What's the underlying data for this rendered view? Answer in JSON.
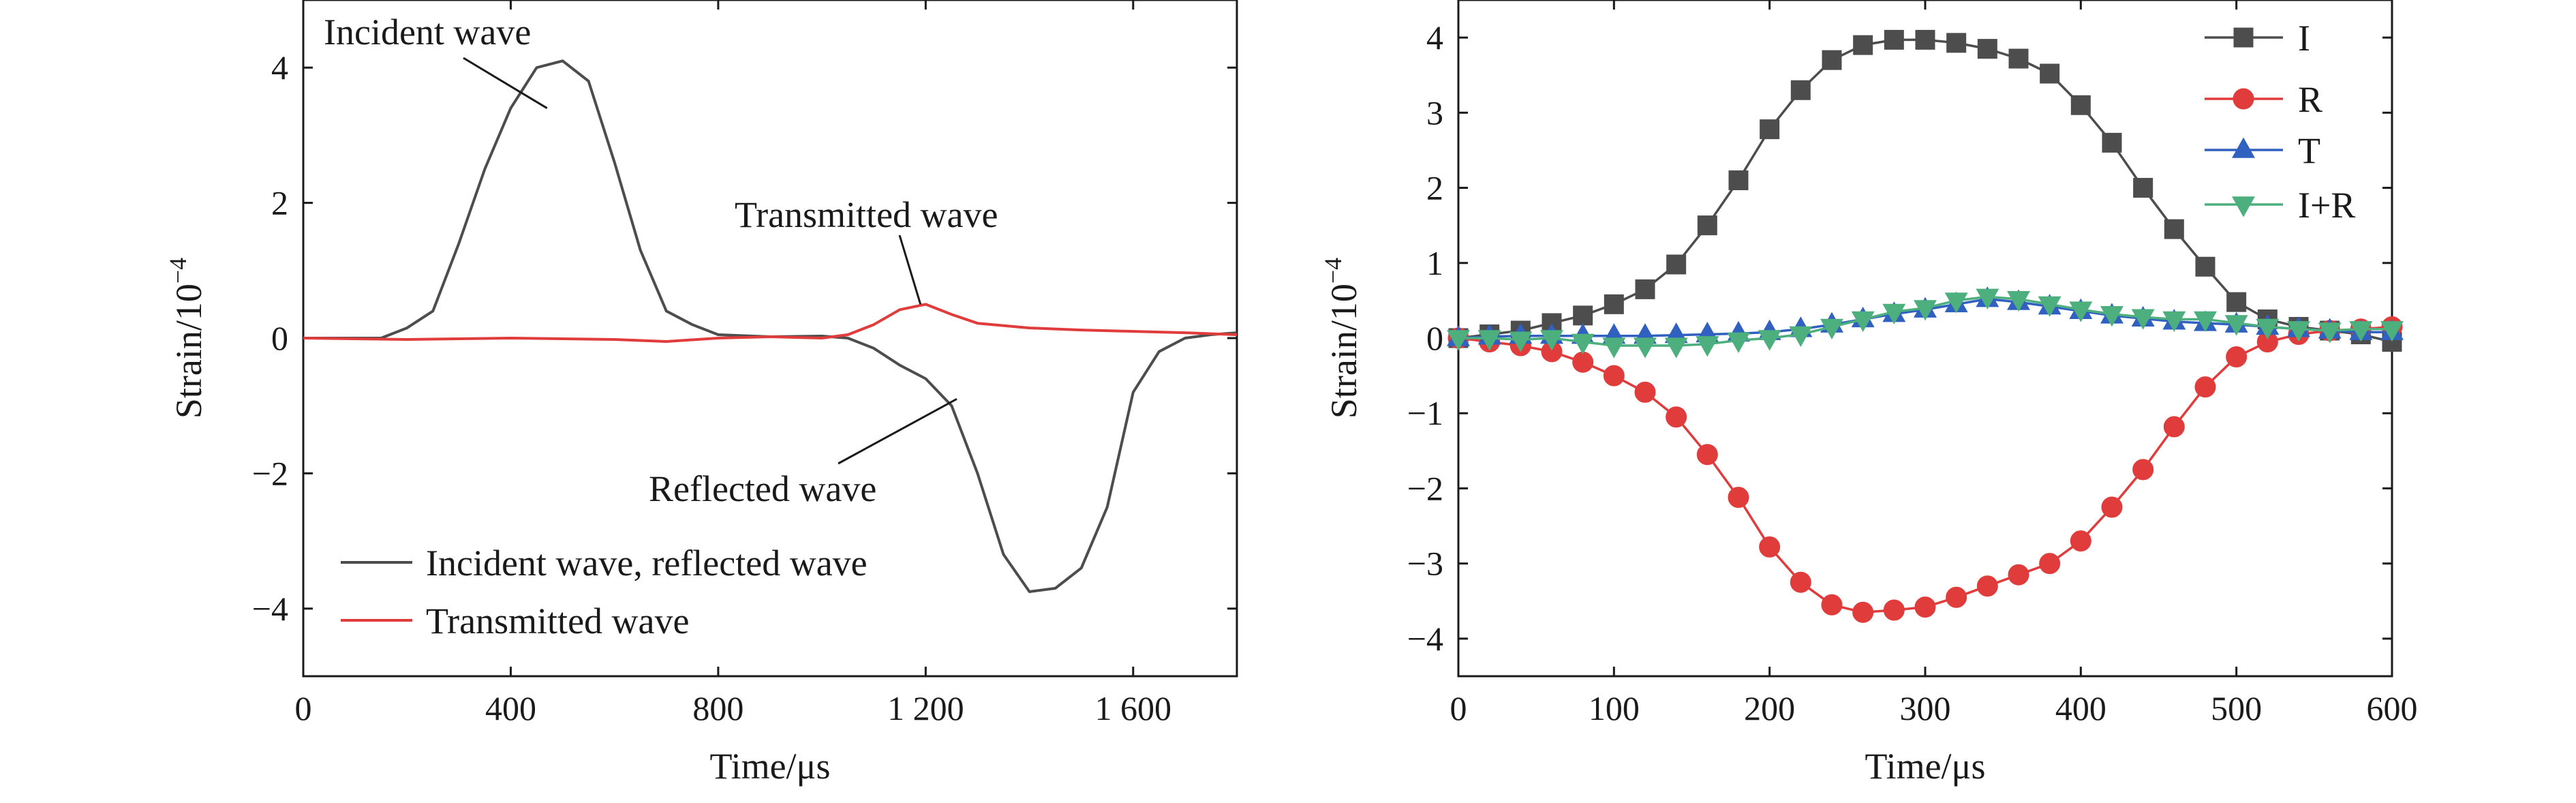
{
  "chart_data": [
    {
      "type": "line",
      "xlabel": "Time/μs",
      "ylabel": "Strain/10",
      "ylabel_exponent": "−4",
      "xlim": [
        0,
        1800
      ],
      "ylim": [
        -5,
        5
      ],
      "xticks": [
        0,
        400,
        800,
        1200,
        1600
      ],
      "xtick_labels": [
        "0",
        "400",
        "800",
        "1 200",
        "1 600"
      ],
      "yticks": [
        -4,
        -2,
        0,
        2,
        4
      ],
      "ytick_labels": [
        "−4",
        "−2",
        "0",
        "2",
        "4"
      ],
      "legend_position": "bottom-left",
      "colors": {
        "incident_reflected": "#4d4d4d",
        "transmitted": "#e03c3c"
      },
      "series": [
        {
          "name": "Incident wave, reflected wave",
          "x": [
            0,
            100,
            150,
            200,
            250,
            300,
            350,
            400,
            450,
            500,
            550,
            600,
            650,
            700,
            750,
            800,
            900,
            1000,
            1050,
            1100,
            1150,
            1200,
            1250,
            1300,
            1350,
            1400,
            1450,
            1500,
            1550,
            1600,
            1650,
            1700,
            1750,
            1800
          ],
          "y": [
            0,
            0,
            0,
            0.15,
            0.4,
            1.4,
            2.5,
            3.4,
            4.0,
            4.1,
            3.8,
            2.6,
            1.3,
            0.4,
            0.2,
            0.05,
            0.02,
            0.03,
            0,
            -0.15,
            -0.4,
            -0.6,
            -1.0,
            -2.0,
            -3.2,
            -3.75,
            -3.7,
            -3.4,
            -2.5,
            -0.8,
            -0.2,
            0,
            0.05,
            0.08
          ]
        },
        {
          "name": "Transmitted wave",
          "x": [
            0,
            200,
            400,
            600,
            700,
            800,
            900,
            1000,
            1050,
            1100,
            1150,
            1200,
            1250,
            1300,
            1400,
            1500,
            1600,
            1700,
            1800
          ],
          "y": [
            0,
            -0.02,
            0,
            -0.02,
            -0.05,
            0,
            0.02,
            0,
            0.05,
            0.2,
            0.42,
            0.5,
            0.35,
            0.22,
            0.15,
            0.12,
            0.1,
            0.08,
            0.05
          ]
        }
      ],
      "annotations": [
        {
          "text": "Incident wave",
          "x": 470,
          "y": 3.4
        },
        {
          "text": "Transmitted wave",
          "x": 1190,
          "y": 0.5
        },
        {
          "text": "Reflected wave",
          "x": 1260,
          "y": -0.9
        }
      ]
    },
    {
      "type": "line",
      "xlabel": "Time/μs",
      "ylabel": "Strain/10",
      "ylabel_exponent": "−4",
      "xlim": [
        0,
        600
      ],
      "ylim": [
        -4.5,
        4.5
      ],
      "xticks": [
        0,
        100,
        200,
        300,
        400,
        500,
        600
      ],
      "xtick_labels": [
        "0",
        "100",
        "200",
        "300",
        "400",
        "500",
        "600"
      ],
      "yticks": [
        -4,
        -3,
        -2,
        -1,
        0,
        1,
        2,
        3,
        4
      ],
      "ytick_labels": [
        "−4",
        "−3",
        "−2",
        "−1",
        "0",
        "1",
        "2",
        "3",
        "4"
      ],
      "legend_position": "top-right",
      "x": [
        0,
        20,
        40,
        60,
        80,
        100,
        120,
        140,
        160,
        180,
        200,
        220,
        240,
        260,
        280,
        300,
        320,
        340,
        360,
        380,
        400,
        420,
        440,
        460,
        480,
        500,
        520,
        540,
        560,
        580,
        600
      ],
      "series": [
        {
          "name": "I",
          "marker": "square",
          "color": "#4d4d4d",
          "values": [
            0,
            0.05,
            0.1,
            0.2,
            0.3,
            0.45,
            0.65,
            0.98,
            1.5,
            2.1,
            2.78,
            3.3,
            3.7,
            3.9,
            3.97,
            3.97,
            3.93,
            3.85,
            3.72,
            3.52,
            3.1,
            2.6,
            2.0,
            1.45,
            0.95,
            0.48,
            0.25,
            0.15,
            0.1,
            0.05,
            -0.05
          ]
        },
        {
          "name": "R",
          "marker": "circle",
          "color": "#e03c3c",
          "values": [
            0,
            -0.05,
            -0.1,
            -0.18,
            -0.32,
            -0.5,
            -0.72,
            -1.05,
            -1.55,
            -2.12,
            -2.78,
            -3.25,
            -3.55,
            -3.65,
            -3.62,
            -3.58,
            -3.45,
            -3.3,
            -3.15,
            -3.0,
            -2.7,
            -2.25,
            -1.75,
            -1.18,
            -0.65,
            -0.25,
            -0.05,
            0.05,
            0.1,
            0.12,
            0.15
          ]
        },
        {
          "name": "T",
          "marker": "triangle-up",
          "color": "#3060c0",
          "values": [
            0,
            0.02,
            0.03,
            0.03,
            0.03,
            0.03,
            0.03,
            0.04,
            0.05,
            0.06,
            0.08,
            0.12,
            0.18,
            0.25,
            0.32,
            0.38,
            0.45,
            0.52,
            0.48,
            0.42,
            0.36,
            0.3,
            0.26,
            0.22,
            0.2,
            0.18,
            0.15,
            0.12,
            0.1,
            0.08,
            0.08
          ]
        },
        {
          "name": "I+R",
          "marker": "triangle-down",
          "color": "#4caf7d",
          "values": [
            0,
            0,
            -0.02,
            0,
            -0.05,
            -0.1,
            -0.1,
            -0.1,
            -0.08,
            -0.03,
            0,
            0.05,
            0.15,
            0.25,
            0.35,
            0.4,
            0.5,
            0.55,
            0.52,
            0.45,
            0.38,
            0.32,
            0.28,
            0.25,
            0.25,
            0.2,
            0.15,
            0.12,
            0.1,
            0.12,
            0.12
          ]
        }
      ]
    }
  ]
}
